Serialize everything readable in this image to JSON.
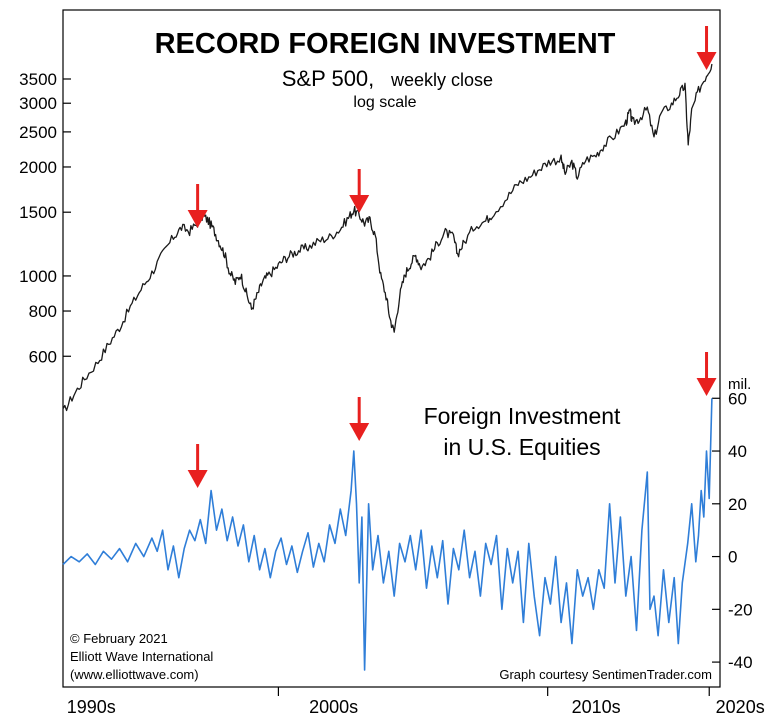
{
  "chart_data": {
    "type": "line",
    "title": "RECORD FOREIGN INVESTMENT",
    "x_tick_labels": [
      "1990s",
      "2000s",
      "2010s",
      "2020s"
    ],
    "upper_panel": {
      "series_name_main": "S&P 500,",
      "series_name_suffix": "weekly close",
      "scale_note": "log scale",
      "scale": "log",
      "y_ticks": [
        600,
        800,
        1000,
        1500,
        2000,
        2500,
        3000,
        3500
      ],
      "ylim": [
        400,
        4000
      ],
      "series": {
        "values": [
          [
            1997.0,
            420
          ],
          [
            1997.4,
            470
          ],
          [
            1997.8,
            520
          ],
          [
            1998.3,
            580
          ],
          [
            1998.7,
            650
          ],
          [
            1999.1,
            720
          ],
          [
            1999.5,
            820
          ],
          [
            1999.9,
            920
          ],
          [
            2000.3,
            1020
          ],
          [
            2000.7,
            1150
          ],
          [
            2001.1,
            1280
          ],
          [
            2001.4,
            1360
          ],
          [
            2001.7,
            1330
          ],
          [
            2002.0,
            1400
          ],
          [
            2002.2,
            1470
          ],
          [
            2002.4,
            1420
          ],
          [
            2002.6,
            1340
          ],
          [
            2002.8,
            1240
          ],
          [
            2003.0,
            1150
          ],
          [
            2003.2,
            1020
          ],
          [
            2003.4,
            960
          ],
          [
            2003.6,
            1010
          ],
          [
            2003.8,
            900
          ],
          [
            2004.0,
            810
          ],
          [
            2004.2,
            880
          ],
          [
            2004.4,
            960
          ],
          [
            2004.6,
            1000
          ],
          [
            2004.9,
            1050
          ],
          [
            2005.2,
            1110
          ],
          [
            2005.5,
            1150
          ],
          [
            2005.8,
            1180
          ],
          [
            2006.1,
            1200
          ],
          [
            2006.5,
            1250
          ],
          [
            2006.9,
            1280
          ],
          [
            2007.3,
            1350
          ],
          [
            2007.6,
            1450
          ],
          [
            2007.8,
            1520
          ],
          [
            2008.0,
            1470
          ],
          [
            2008.2,
            1400
          ],
          [
            2008.4,
            1430
          ],
          [
            2008.6,
            1290
          ],
          [
            2008.8,
            1000
          ],
          [
            2009.0,
            880
          ],
          [
            2009.15,
            760
          ],
          [
            2009.3,
            700
          ],
          [
            2009.5,
            880
          ],
          [
            2009.7,
            1010
          ],
          [
            2009.9,
            1080
          ],
          [
            2010.1,
            1140
          ],
          [
            2010.3,
            1060
          ],
          [
            2010.6,
            1120
          ],
          [
            2010.9,
            1230
          ],
          [
            2011.2,
            1320
          ],
          [
            2011.5,
            1280
          ],
          [
            2011.65,
            1150
          ],
          [
            2011.9,
            1240
          ],
          [
            2012.3,
            1380
          ],
          [
            2012.7,
            1420
          ],
          [
            2013.0,
            1500
          ],
          [
            2013.5,
            1650
          ],
          [
            2013.9,
            1800
          ],
          [
            2014.3,
            1870
          ],
          [
            2014.7,
            1980
          ],
          [
            2015.1,
            2080
          ],
          [
            2015.5,
            2100
          ],
          [
            2015.65,
            1920
          ],
          [
            2015.9,
            2060
          ],
          [
            2016.1,
            1880
          ],
          [
            2016.4,
            2090
          ],
          [
            2016.8,
            2160
          ],
          [
            2017.1,
            2300
          ],
          [
            2017.5,
            2450
          ],
          [
            2017.9,
            2650
          ],
          [
            2018.05,
            2850
          ],
          [
            2018.15,
            2650
          ],
          [
            2018.4,
            2720
          ],
          [
            2018.7,
            2900
          ],
          [
            2018.95,
            2400
          ],
          [
            2019.2,
            2800
          ],
          [
            2019.6,
            2980
          ],
          [
            2019.9,
            3200
          ],
          [
            2020.1,
            3350
          ],
          [
            2020.22,
            2300
          ],
          [
            2020.35,
            2850
          ],
          [
            2020.6,
            3250
          ],
          [
            2020.9,
            3600
          ],
          [
            2021.1,
            3850
          ]
        ]
      }
    },
    "lower_panel": {
      "series_name_line1": "Foreign Investment",
      "series_name_line2": "in U.S. Equities",
      "units": "mil.",
      "y_ticks": [
        -40,
        -20,
        0,
        20,
        40,
        60
      ],
      "ylim": [
        -43,
        62
      ],
      "series": {
        "values": [
          [
            1997.0,
            -3
          ],
          [
            1997.3,
            0
          ],
          [
            1997.6,
            -2
          ],
          [
            1997.9,
            1
          ],
          [
            1998.2,
            -3
          ],
          [
            1998.5,
            2
          ],
          [
            1998.8,
            -1
          ],
          [
            1999.1,
            3
          ],
          [
            1999.4,
            -2
          ],
          [
            1999.7,
            5
          ],
          [
            2000.0,
            0
          ],
          [
            2000.3,
            7
          ],
          [
            2000.5,
            2
          ],
          [
            2000.7,
            10
          ],
          [
            2000.9,
            -5
          ],
          [
            2001.1,
            4
          ],
          [
            2001.3,
            -8
          ],
          [
            2001.5,
            3
          ],
          [
            2001.7,
            10
          ],
          [
            2001.9,
            6
          ],
          [
            2002.1,
            14
          ],
          [
            2002.3,
            5
          ],
          [
            2002.5,
            25
          ],
          [
            2002.7,
            10
          ],
          [
            2002.9,
            18
          ],
          [
            2003.1,
            6
          ],
          [
            2003.3,
            15
          ],
          [
            2003.5,
            4
          ],
          [
            2003.7,
            12
          ],
          [
            2003.9,
            -2
          ],
          [
            2004.1,
            8
          ],
          [
            2004.3,
            -5
          ],
          [
            2004.5,
            3
          ],
          [
            2004.7,
            -8
          ],
          [
            2004.9,
            2
          ],
          [
            2005.1,
            7
          ],
          [
            2005.3,
            -3
          ],
          [
            2005.5,
            4
          ],
          [
            2005.7,
            -6
          ],
          [
            2005.9,
            2
          ],
          [
            2006.1,
            9
          ],
          [
            2006.3,
            -4
          ],
          [
            2006.5,
            5
          ],
          [
            2006.7,
            -2
          ],
          [
            2006.9,
            12
          ],
          [
            2007.1,
            5
          ],
          [
            2007.3,
            18
          ],
          [
            2007.5,
            8
          ],
          [
            2007.7,
            25
          ],
          [
            2007.8,
            40
          ],
          [
            2007.9,
            20
          ],
          [
            2008.0,
            -10
          ],
          [
            2008.1,
            15
          ],
          [
            2008.2,
            -43
          ],
          [
            2008.35,
            20
          ],
          [
            2008.5,
            -5
          ],
          [
            2008.7,
            8
          ],
          [
            2008.9,
            -10
          ],
          [
            2009.1,
            2
          ],
          [
            2009.3,
            -15
          ],
          [
            2009.5,
            5
          ],
          [
            2009.7,
            -2
          ],
          [
            2009.9,
            8
          ],
          [
            2010.1,
            -5
          ],
          [
            2010.3,
            10
          ],
          [
            2010.5,
            -12
          ],
          [
            2010.7,
            4
          ],
          [
            2010.9,
            -8
          ],
          [
            2011.1,
            6
          ],
          [
            2011.3,
            -18
          ],
          [
            2011.5,
            3
          ],
          [
            2011.7,
            -5
          ],
          [
            2011.9,
            10
          ],
          [
            2012.1,
            -8
          ],
          [
            2012.3,
            2
          ],
          [
            2012.5,
            -15
          ],
          [
            2012.7,
            5
          ],
          [
            2012.9,
            -3
          ],
          [
            2013.1,
            8
          ],
          [
            2013.3,
            -20
          ],
          [
            2013.5,
            3
          ],
          [
            2013.7,
            -10
          ],
          [
            2013.9,
            2
          ],
          [
            2014.1,
            -25
          ],
          [
            2014.3,
            5
          ],
          [
            2014.5,
            -15
          ],
          [
            2014.7,
            -30
          ],
          [
            2014.9,
            -8
          ],
          [
            2015.1,
            -18
          ],
          [
            2015.3,
            0
          ],
          [
            2015.5,
            -25
          ],
          [
            2015.7,
            -10
          ],
          [
            2015.9,
            -33
          ],
          [
            2016.1,
            -5
          ],
          [
            2016.3,
            -15
          ],
          [
            2016.5,
            -8
          ],
          [
            2016.7,
            -20
          ],
          [
            2016.9,
            -5
          ],
          [
            2017.1,
            -12
          ],
          [
            2017.3,
            20
          ],
          [
            2017.5,
            -10
          ],
          [
            2017.7,
            15
          ],
          [
            2017.9,
            -15
          ],
          [
            2018.1,
            0
          ],
          [
            2018.3,
            -28
          ],
          [
            2018.5,
            10
          ],
          [
            2018.7,
            32
          ],
          [
            2018.8,
            -20
          ],
          [
            2018.95,
            -15
          ],
          [
            2019.1,
            -30
          ],
          [
            2019.3,
            -5
          ],
          [
            2019.5,
            -25
          ],
          [
            2019.7,
            -8
          ],
          [
            2019.85,
            -33
          ],
          [
            2020.0,
            -10
          ],
          [
            2020.2,
            5
          ],
          [
            2020.35,
            20
          ],
          [
            2020.5,
            -2
          ],
          [
            2020.6,
            8
          ],
          [
            2020.7,
            25
          ],
          [
            2020.8,
            15
          ],
          [
            2020.9,
            40
          ],
          [
            2021.0,
            22
          ],
          [
            2021.1,
            60
          ]
        ]
      }
    },
    "annotation_arrows": {
      "color": "#e8201f",
      "upper_dates": [
        2002.0,
        2008.0,
        2020.9
      ],
      "lower_dates": [
        2002.0,
        2008.0,
        2020.9
      ]
    },
    "upper_color": "#1a1a1a",
    "lower_color": "#2f7ed8",
    "credits": {
      "line1": "© February 2021",
      "line2": "Elliott Wave International",
      "line3": "(www.elliottwave.com)",
      "source": "Graph courtesy SentimenTrader.com"
    }
  }
}
